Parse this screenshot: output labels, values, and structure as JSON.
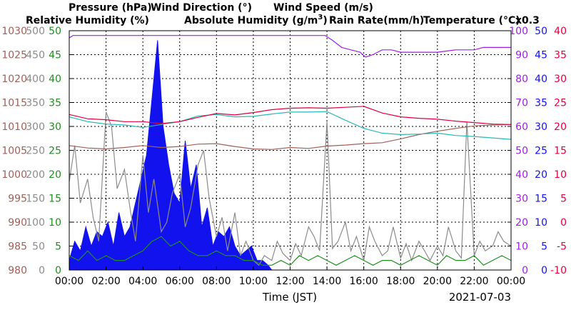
{
  "colors": {
    "pressure": "#a0605a",
    "wind_direction": "#8c8c8c",
    "wind_speed": "#1f8f1f",
    "humidity": "#9d22dd",
    "abs_humidity": "#28b8b8",
    "rain": "#1212ee",
    "temperature": "#e00040",
    "grid": "#000000"
  },
  "legend": {
    "pressure": "Pressure (hPa)",
    "wind_direction": "Wind Direction (°)",
    "wind_speed": "Wind Speed (m/s)",
    "humidity": "Relative Humidity (%)",
    "abs_humidity_pre": "Absolute Humidity (g/m",
    "abs_humidity_sup": "3",
    "abs_humidity_post": ")",
    "rain": "Rain Rate(mm/h)",
    "temperature": "Temperature (°C)",
    "multiplier": "x0.3"
  },
  "chart_data": {
    "type": "line",
    "xlabel": "Time (JST)",
    "date": "2021-07-03",
    "x_ticks": [
      "00:00",
      "02:00",
      "04:00",
      "06:00",
      "08:00",
      "10:00",
      "12:00",
      "14:00",
      "16:00",
      "18:00",
      "20:00",
      "22:00",
      "00:00"
    ],
    "x_range_hours": [
      0,
      24
    ],
    "grid": true,
    "axes": {
      "pressure": {
        "ticks": [
          980,
          985,
          990,
          995,
          1000,
          1005,
          1010,
          1015,
          1020,
          1025,
          1030
        ],
        "range": [
          980,
          1030
        ]
      },
      "wind_direction": {
        "ticks": [
          0,
          50,
          100,
          150,
          200,
          250,
          300,
          350,
          400,
          450,
          500
        ],
        "range": [
          0,
          500
        ]
      },
      "wind_speed": {
        "ticks": [
          0,
          5,
          10,
          15,
          20,
          25,
          30,
          35,
          40,
          45,
          50
        ],
        "range": [
          0,
          50
        ]
      },
      "humidity": {
        "ticks": [
          0,
          10,
          20,
          30,
          40,
          50,
          60,
          70,
          80,
          90,
          100
        ],
        "range": [
          0,
          100
        ]
      },
      "rain": {
        "ticks": [
          0,
          5,
          10,
          15,
          20,
          25,
          30,
          35,
          40,
          45,
          50
        ],
        "range": [
          0,
          50
        ]
      },
      "temperature": {
        "ticks": [
          -10,
          -5,
          0,
          5,
          10,
          15,
          20,
          25,
          30,
          35,
          40
        ],
        "range": [
          -10,
          40
        ]
      }
    },
    "series": [
      {
        "name": "Pressure (hPa)",
        "axis": "pressure",
        "type": "line",
        "x": [
          0,
          1,
          2,
          3,
          4,
          5,
          6,
          7,
          8,
          9,
          10,
          11,
          12,
          13,
          14,
          15,
          16,
          17,
          18,
          19,
          20,
          21,
          22,
          23,
          24
        ],
        "y": [
          1006,
          1005.5,
          1005.3,
          1005.6,
          1006,
          1005.6,
          1005.8,
          1006.3,
          1006.4,
          1005.8,
          1005.3,
          1005.2,
          1005.6,
          1005.4,
          1005.9,
          1006.1,
          1006.4,
          1006.6,
          1007.4,
          1008.3,
          1009,
          1009.6,
          1010.1,
          1010.3,
          1010.4
        ]
      },
      {
        "name": "Wind Direction (°)",
        "axis": "wind_direction",
        "type": "line",
        "x": [
          0,
          0.3,
          0.6,
          1,
          1.3,
          1.6,
          2,
          2.3,
          2.6,
          3,
          3.3,
          3.6,
          4,
          4.3,
          4.6,
          5,
          5.3,
          5.6,
          6,
          6.3,
          6.6,
          7,
          7.3,
          7.6,
          8,
          8.3,
          8.6,
          9,
          9.3,
          9.6,
          10,
          10.3,
          10.6,
          11,
          11.3,
          11.6,
          12,
          12.3,
          12.6,
          13,
          13.3,
          13.6,
          14,
          14.3,
          14.6,
          15,
          15.3,
          15.6,
          16,
          16.3,
          16.6,
          17,
          17.3,
          17.6,
          18,
          18.3,
          18.6,
          19,
          19.3,
          19.6,
          20,
          20.3,
          20.6,
          21,
          21.3,
          21.6,
          22,
          22.3,
          22.6,
          23,
          23.3,
          23.6,
          24
        ],
        "y": [
          185,
          260,
          140,
          190,
          110,
          60,
          330,
          300,
          170,
          210,
          130,
          60,
          240,
          120,
          190,
          80,
          100,
          160,
          200,
          90,
          130,
          220,
          250,
          150,
          70,
          110,
          40,
          120,
          30,
          60,
          20,
          10,
          30,
          20,
          60,
          35,
          20,
          55,
          30,
          90,
          70,
          40,
          310,
          45,
          60,
          100,
          40,
          70,
          20,
          90,
          60,
          30,
          40,
          90,
          25,
          55,
          20,
          60,
          40,
          20,
          50,
          30,
          90,
          40,
          25,
          310,
          30,
          60,
          40,
          50,
          80,
          60,
          50
        ]
      },
      {
        "name": "Wind Speed (m/s)",
        "axis": "wind_speed",
        "type": "line",
        "x": [
          0,
          0.5,
          1,
          1.5,
          2,
          2.5,
          3,
          3.5,
          4,
          4.5,
          5,
          5.5,
          6,
          6.5,
          7,
          7.5,
          8,
          8.5,
          9,
          9.5,
          10,
          10.5,
          11,
          11.5,
          12,
          12.5,
          13,
          13.5,
          14,
          14.5,
          15,
          15.5,
          16,
          16.5,
          17,
          17.5,
          18,
          18.5,
          19,
          19.5,
          20,
          20.5,
          21,
          21.5,
          22,
          22.5,
          23,
          23.5,
          24
        ],
        "y": [
          3,
          2,
          4,
          2,
          3,
          2,
          2,
          3,
          4,
          6,
          7,
          5,
          6,
          4,
          3,
          3,
          4,
          3,
          3,
          2,
          2,
          1,
          1,
          2,
          1,
          3,
          2,
          3,
          2,
          1,
          2,
          3,
          2,
          1,
          2,
          2,
          1,
          2,
          3,
          2,
          1,
          3,
          2,
          2,
          3,
          1,
          2,
          3,
          2
        ]
      },
      {
        "name": "Relative Humidity (%)",
        "axis": "humidity",
        "type": "line",
        "x": [
          0,
          0.2,
          1,
          2,
          4,
          6,
          8,
          10,
          12,
          13.9,
          14.3,
          14.8,
          15.3,
          15.8,
          16.1,
          16.5,
          17,
          17.5,
          18,
          19,
          20,
          21,
          21.5,
          22,
          22.5,
          23,
          24
        ],
        "y": [
          97,
          98,
          98,
          98,
          98,
          98,
          98,
          98,
          98,
          98,
          96,
          93,
          92,
          91,
          89,
          90,
          92,
          92,
          91,
          91,
          91,
          92,
          92,
          92,
          93,
          93,
          93
        ]
      },
      {
        "name": "Absolute Humidity (g/m3)",
        "axis": "wind_speed",
        "type": "line",
        "x": [
          0,
          1,
          2,
          3,
          4,
          5,
          6,
          7,
          8,
          9,
          10,
          11,
          12,
          13,
          14,
          15,
          16,
          17,
          18,
          19,
          20,
          21,
          22,
          23,
          24
        ],
        "y": [
          32,
          31,
          30.5,
          30.3,
          29.8,
          30.4,
          31,
          32.2,
          32.5,
          32,
          32.1,
          32.6,
          33,
          33,
          33.1,
          31.3,
          29.6,
          28.6,
          28.3,
          28.4,
          28.6,
          28.1,
          27.9,
          27.6,
          27.3
        ]
      },
      {
        "name": "Rain Rate(mm/h)",
        "axis": "rain",
        "type": "area",
        "x": [
          0,
          0.3,
          0.6,
          0.9,
          1.2,
          1.5,
          1.8,
          2.1,
          2.4,
          2.7,
          3,
          3.3,
          3.6,
          3.9,
          4.2,
          4.5,
          4.8,
          5.1,
          5.4,
          5.7,
          6,
          6.3,
          6.6,
          6.9,
          7.2,
          7.5,
          7.8,
          8.1,
          8.4,
          8.7,
          9,
          9.3,
          9.6,
          9.9,
          10.2,
          10.5,
          10.8,
          11
        ],
        "y": [
          2,
          6,
          4,
          9,
          5,
          8,
          7,
          10,
          5,
          12,
          7,
          9,
          14,
          19,
          24,
          36,
          48,
          30,
          22,
          16,
          14,
          27,
          17,
          22,
          9,
          13,
          5,
          8,
          7,
          9,
          5,
          3,
          4,
          5,
          2,
          2,
          1,
          0
        ]
      },
      {
        "name": "Temperature (°C)",
        "axis": "temperature",
        "type": "line",
        "x": [
          0,
          1,
          2,
          3,
          4,
          5,
          6,
          7,
          8,
          9,
          10,
          11,
          12,
          13,
          14,
          15,
          16,
          17,
          18,
          19,
          20,
          21,
          22,
          23,
          24
        ],
        "y": [
          22.5,
          21.6,
          21.4,
          21,
          21,
          20.6,
          21,
          21.9,
          22.7,
          22.4,
          22.9,
          23.5,
          23.8,
          23.9,
          23.8,
          24,
          24.2,
          22.8,
          22,
          21.7,
          21.5,
          21.1,
          20.8,
          20.5,
          20.4
        ]
      }
    ]
  }
}
